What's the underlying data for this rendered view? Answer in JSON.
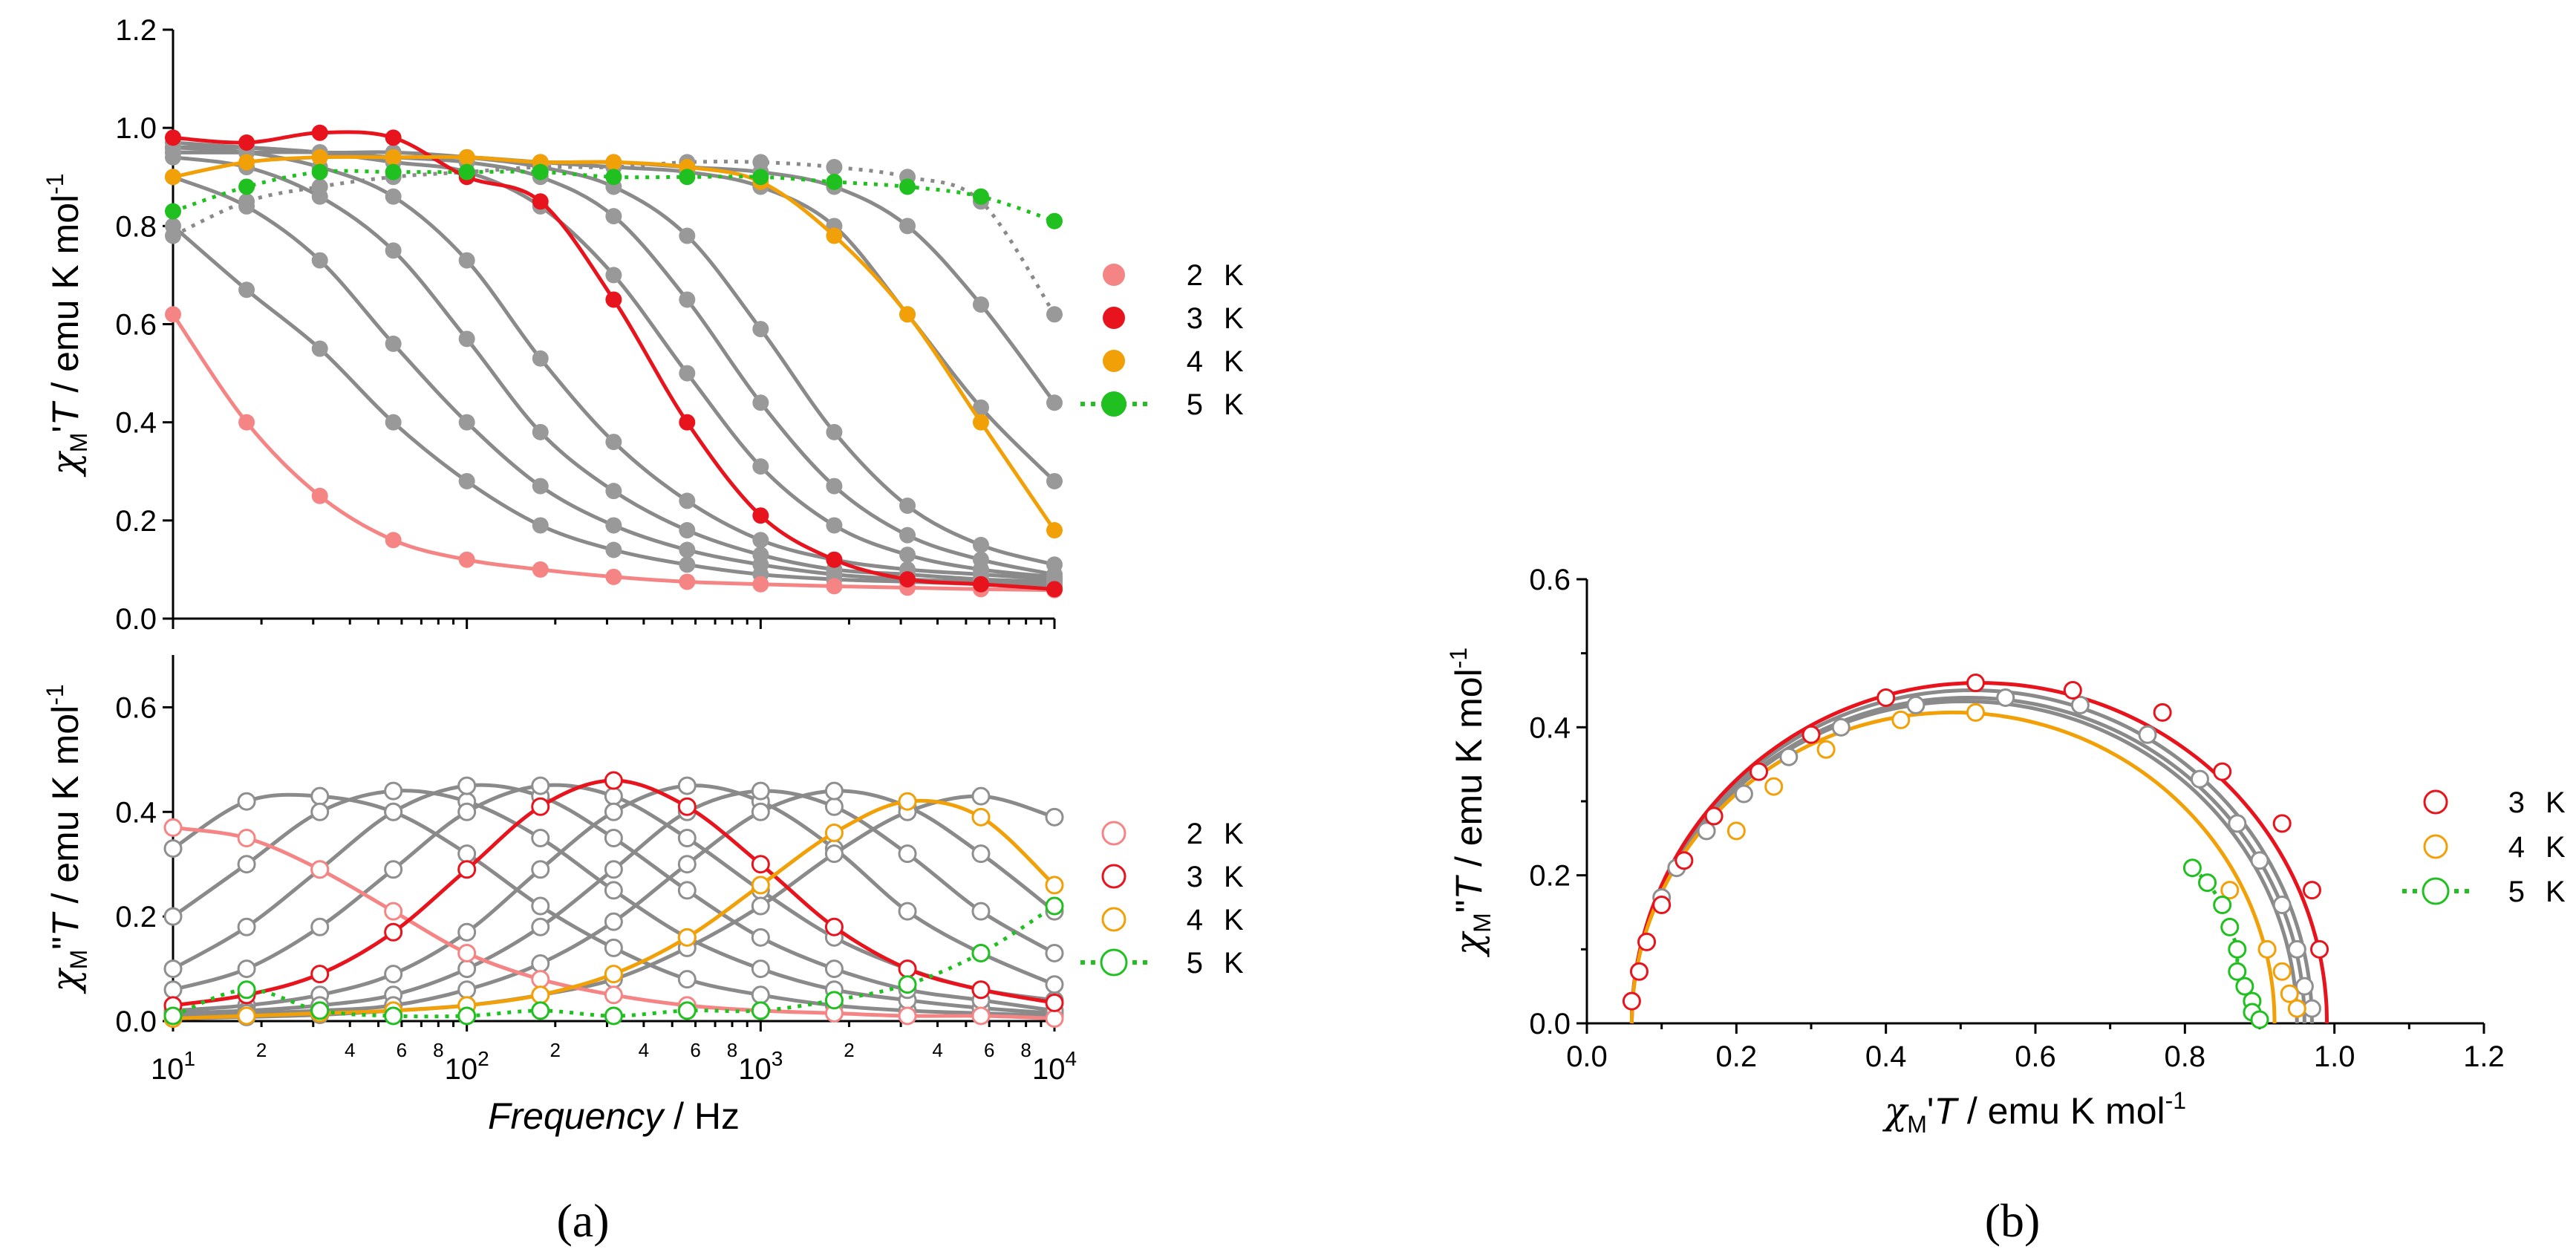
{
  "colors": {
    "2 K": "#f58585",
    "3 K": "#e8141d",
    "4 K": "#f2a007",
    "5 K": "#20c020",
    "gray": "#8a8a8a",
    "gray_marker": "#999999",
    "open_gray_edge": "#8f8f8f",
    "open_fill": "#ffffff"
  },
  "panels": {
    "a": {
      "label": "(a)"
    },
    "b": {
      "label": "(b)"
    }
  },
  "chart_data": [
    {
      "id": "a-top",
      "type": "line",
      "xscale": "log",
      "xlim": [
        10,
        10000
      ],
      "ylim": [
        0,
        1.2
      ],
      "yticks": [
        0.0,
        0.2,
        0.4,
        0.6,
        0.8,
        1.0,
        1.2
      ],
      "ytick_labels": [
        "0.0",
        "0.2",
        "0.4",
        "0.6",
        "0.8",
        "1.0",
        "1.2"
      ],
      "ylabel_parts": [
        "χ",
        "M",
        "'",
        "T",
        " / emu K mol",
        "-1"
      ],
      "marker": "filled",
      "legend": [
        {
          "name": "2 K",
          "label": "2",
          "unit": "K",
          "style": "marker"
        },
        {
          "name": "3 K",
          "label": "3",
          "unit": "K",
          "style": "marker"
        },
        {
          "name": "4 K",
          "label": "4",
          "unit": "K",
          "style": "marker"
        },
        {
          "name": "5 K",
          "label": "5",
          "unit": "K",
          "style": "dotted-line-marker"
        }
      ],
      "x": [
        10,
        17.8,
        31.6,
        56.2,
        100,
        178,
        316,
        562,
        1000,
        1780,
        3160,
        5620,
        10000
      ],
      "series": [
        {
          "name": "2 K",
          "color_key": "2 K",
          "line": "solid",
          "values": [
            0.62,
            0.4,
            0.25,
            0.16,
            0.12,
            0.1,
            0.085,
            0.075,
            0.07,
            0.066,
            0.063,
            0.06,
            0.058
          ]
        },
        {
          "name": "",
          "color_key": "gray",
          "line": "solid",
          "values": [
            0.8,
            0.67,
            0.55,
            0.4,
            0.28,
            0.19,
            0.14,
            0.11,
            0.09,
            0.08,
            0.075,
            0.07,
            0.065
          ]
        },
        {
          "name": "",
          "color_key": "gray",
          "line": "solid",
          "values": [
            0.9,
            0.84,
            0.73,
            0.56,
            0.4,
            0.27,
            0.19,
            0.14,
            0.11,
            0.09,
            0.08,
            0.075,
            0.07
          ]
        },
        {
          "name": "",
          "color_key": "gray",
          "line": "solid",
          "values": [
            0.94,
            0.92,
            0.86,
            0.75,
            0.57,
            0.38,
            0.26,
            0.18,
            0.13,
            0.1,
            0.09,
            0.08,
            0.075
          ]
        },
        {
          "name": "",
          "color_key": "gray",
          "line": "solid",
          "values": [
            0.96,
            0.95,
            0.92,
            0.86,
            0.73,
            0.53,
            0.36,
            0.24,
            0.16,
            0.12,
            0.1,
            0.09,
            0.08
          ]
        },
        {
          "name": "3 K",
          "color_key": "3 K",
          "line": "solid",
          "values": [
            0.98,
            0.97,
            0.99,
            0.98,
            0.9,
            0.85,
            0.65,
            0.4,
            0.21,
            0.12,
            0.08,
            0.07,
            0.06
          ]
        },
        {
          "name": "",
          "color_key": "gray",
          "line": "solid",
          "values": [
            0.97,
            0.96,
            0.95,
            0.93,
            0.91,
            0.84,
            0.7,
            0.5,
            0.31,
            0.19,
            0.13,
            0.1,
            0.085
          ]
        },
        {
          "name": "",
          "color_key": "gray",
          "line": "solid",
          "values": [
            0.96,
            0.96,
            0.95,
            0.94,
            0.93,
            0.9,
            0.82,
            0.65,
            0.44,
            0.27,
            0.17,
            0.12,
            0.09
          ]
        },
        {
          "name": "",
          "color_key": "gray",
          "line": "solid",
          "values": [
            0.96,
            0.96,
            0.95,
            0.95,
            0.94,
            0.92,
            0.88,
            0.78,
            0.59,
            0.38,
            0.23,
            0.15,
            0.11
          ]
        },
        {
          "name": "4 K",
          "color_key": "4 K",
          "line": "solid",
          "values": [
            0.9,
            0.93,
            0.94,
            0.94,
            0.94,
            0.93,
            0.93,
            0.92,
            0.89,
            0.78,
            0.62,
            0.4,
            0.18
          ]
        },
        {
          "name": "",
          "color_key": "gray",
          "line": "solid",
          "values": [
            0.95,
            0.95,
            0.95,
            0.94,
            0.94,
            0.93,
            0.92,
            0.91,
            0.88,
            0.8,
            0.62,
            0.43,
            0.28
          ]
        },
        {
          "name": "",
          "color_key": "gray",
          "line": "solid",
          "values": [
            0.95,
            0.95,
            0.95,
            0.94,
            0.94,
            0.93,
            0.93,
            0.92,
            0.91,
            0.88,
            0.8,
            0.64,
            0.44
          ]
        },
        {
          "name": "",
          "color_key": "gray",
          "line": "dotted",
          "values": [
            0.78,
            0.85,
            0.88,
            0.9,
            0.91,
            0.92,
            0.92,
            0.93,
            0.93,
            0.92,
            0.9,
            0.85,
            0.62
          ]
        },
        {
          "name": "5 K",
          "color_key": "5 K",
          "line": "dotted",
          "values": [
            0.83,
            0.88,
            0.91,
            0.91,
            0.91,
            0.91,
            0.9,
            0.9,
            0.9,
            0.89,
            0.88,
            0.86,
            0.81
          ]
        }
      ]
    },
    {
      "id": "a-bottom",
      "type": "line",
      "xscale": "log",
      "xlim": [
        10,
        10000
      ],
      "ylim": [
        0,
        0.7
      ],
      "yticks": [
        0.0,
        0.2,
        0.4,
        0.6
      ],
      "ytick_labels": [
        "0.0",
        "0.2",
        "0.4",
        "0.6"
      ],
      "xticks": [
        10,
        100,
        1000,
        10000
      ],
      "xtick_base": "10",
      "xtick_exponents": [
        "1",
        "2",
        "3",
        "4"
      ],
      "minor_tick_labels": [
        "2",
        "4",
        "6",
        "8"
      ],
      "xlabel_parts": [
        "Frequency",
        " / Hz"
      ],
      "ylabel_parts": [
        "χ",
        "M",
        "\"",
        "T",
        " / emu K mol",
        "-1"
      ],
      "marker": "open",
      "legend": [
        {
          "name": "2 K",
          "label": "2",
          "unit": "K",
          "style": "marker"
        },
        {
          "name": "3 K",
          "label": "3",
          "unit": "K",
          "style": "marker"
        },
        {
          "name": "4 K",
          "label": "4",
          "unit": "K",
          "style": "marker"
        },
        {
          "name": "5 K",
          "label": "5",
          "unit": "K",
          "style": "dotted-line-marker"
        }
      ],
      "x": [
        10,
        17.8,
        31.6,
        56.2,
        100,
        178,
        316,
        562,
        1000,
        1780,
        3160,
        5620,
        10000
      ],
      "series": [
        {
          "name": "2 K",
          "color_key": "2 K",
          "line": "solid",
          "values": [
            0.37,
            0.35,
            0.29,
            0.21,
            0.13,
            0.08,
            0.05,
            0.03,
            0.02,
            0.015,
            0.01,
            0.01,
            0.005
          ]
        },
        {
          "name": "",
          "color_key": "gray",
          "line": "solid",
          "values": [
            0.33,
            0.42,
            0.43,
            0.4,
            0.32,
            0.22,
            0.14,
            0.08,
            0.05,
            0.03,
            0.02,
            0.015,
            0.01
          ]
        },
        {
          "name": "",
          "color_key": "gray",
          "line": "solid",
          "values": [
            0.2,
            0.3,
            0.4,
            0.44,
            0.42,
            0.35,
            0.25,
            0.16,
            0.1,
            0.06,
            0.04,
            0.025,
            0.015
          ]
        },
        {
          "name": "",
          "color_key": "gray",
          "line": "solid",
          "values": [
            0.1,
            0.18,
            0.29,
            0.4,
            0.45,
            0.43,
            0.35,
            0.25,
            0.16,
            0.1,
            0.06,
            0.04,
            0.02
          ]
        },
        {
          "name": "",
          "color_key": "gray",
          "line": "solid",
          "values": [
            0.06,
            0.1,
            0.18,
            0.29,
            0.4,
            0.45,
            0.43,
            0.35,
            0.25,
            0.16,
            0.1,
            0.06,
            0.04
          ]
        },
        {
          "name": "3 K",
          "color_key": "3 K",
          "line": "solid",
          "values": [
            0.03,
            0.05,
            0.09,
            0.17,
            0.29,
            0.41,
            0.46,
            0.41,
            0.3,
            0.18,
            0.1,
            0.06,
            0.035
          ]
        },
        {
          "name": "",
          "color_key": "gray",
          "line": "solid",
          "values": [
            0.02,
            0.03,
            0.05,
            0.09,
            0.17,
            0.29,
            0.4,
            0.45,
            0.42,
            0.33,
            0.21,
            0.13,
            0.07
          ]
        },
        {
          "name": "",
          "color_key": "gray",
          "line": "solid",
          "values": [
            0.015,
            0.02,
            0.03,
            0.05,
            0.1,
            0.18,
            0.29,
            0.4,
            0.44,
            0.41,
            0.32,
            0.21,
            0.13
          ]
        },
        {
          "name": "",
          "color_key": "gray",
          "line": "solid",
          "values": [
            0.01,
            0.015,
            0.02,
            0.03,
            0.06,
            0.11,
            0.19,
            0.3,
            0.4,
            0.44,
            0.41,
            0.32,
            0.21
          ]
        },
        {
          "name": "4 K",
          "color_key": "4 K",
          "line": "solid",
          "values": [
            0.005,
            0.01,
            0.015,
            0.02,
            0.03,
            0.05,
            0.09,
            0.16,
            0.26,
            0.36,
            0.42,
            0.39,
            0.26
          ]
        },
        {
          "name": "",
          "color_key": "gray",
          "line": "solid",
          "values": [
            0.005,
            0.008,
            0.012,
            0.02,
            0.03,
            0.05,
            0.08,
            0.14,
            0.22,
            0.32,
            0.4,
            0.43,
            0.39
          ]
        },
        {
          "name": "5 K",
          "color_key": "5 K",
          "line": "dotted",
          "values": [
            0.01,
            0.06,
            0.02,
            0.01,
            0.01,
            0.02,
            0.01,
            0.02,
            0.02,
            0.04,
            0.07,
            0.13,
            0.22
          ]
        }
      ]
    },
    {
      "id": "b",
      "type": "scatter",
      "xlim": [
        0,
        1.2
      ],
      "ylim": [
        0,
        0.6
      ],
      "xticks": [
        0.0,
        0.2,
        0.4,
        0.6,
        0.8,
        1.0,
        1.2
      ],
      "xtick_labels": [
        "0.0",
        "0.2",
        "0.4",
        "0.6",
        "0.8",
        "1.0",
        "1.2"
      ],
      "yticks": [
        0.0,
        0.2,
        0.4,
        0.6
      ],
      "ytick_labels": [
        "0.0",
        "0.2",
        "0.4",
        "0.6"
      ],
      "xlabel_parts": [
        "χ",
        "M",
        "'",
        "T",
        " / emu K mol",
        "-1"
      ],
      "ylabel_parts": [
        "χ",
        "M",
        "\"",
        "T",
        " / emu K mol",
        "-1"
      ],
      "marker": "open",
      "legend": [
        {
          "name": "3 K",
          "label": "3",
          "unit": "K",
          "style": "marker"
        },
        {
          "name": "4 K",
          "label": "4",
          "unit": "K",
          "style": "marker"
        },
        {
          "name": "5 K",
          "label": "5",
          "unit": "K",
          "style": "dotted-line-marker"
        }
      ],
      "arcs": [
        {
          "name": "3 K",
          "color_key": "3 K",
          "x0": 0.06,
          "x1": 0.99,
          "h": 0.46
        },
        {
          "name": "",
          "color_key": "gray",
          "x0": 0.06,
          "x1": 0.97,
          "h": 0.45
        },
        {
          "name": "",
          "color_key": "gray",
          "x0": 0.06,
          "x1": 0.96,
          "h": 0.44
        },
        {
          "name": "",
          "color_key": "gray",
          "x0": 0.06,
          "x1": 0.95,
          "h": 0.435
        },
        {
          "name": "4 K",
          "color_key": "4 K",
          "x0": 0.06,
          "x1": 0.92,
          "h": 0.42
        }
      ],
      "series": [
        {
          "name": "3 K",
          "color_key": "3 K",
          "points": [
            [
              0.06,
              0.03
            ],
            [
              0.07,
              0.07
            ],
            [
              0.08,
              0.11
            ],
            [
              0.1,
              0.16
            ],
            [
              0.13,
              0.22
            ],
            [
              0.17,
              0.28
            ],
            [
              0.23,
              0.34
            ],
            [
              0.3,
              0.39
            ],
            [
              0.4,
              0.44
            ],
            [
              0.52,
              0.46
            ],
            [
              0.65,
              0.45
            ],
            [
              0.77,
              0.42
            ],
            [
              0.85,
              0.34
            ],
            [
              0.93,
              0.27
            ],
            [
              0.97,
              0.18
            ],
            [
              0.98,
              0.1
            ]
          ]
        },
        {
          "name": "4 K",
          "color_key": "4 K",
          "points": [
            [
              0.2,
              0.26
            ],
            [
              0.25,
              0.32
            ],
            [
              0.32,
              0.37
            ],
            [
              0.42,
              0.41
            ],
            [
              0.52,
              0.42
            ],
            [
              0.86,
              0.18
            ],
            [
              0.91,
              0.1
            ],
            [
              0.93,
              0.07
            ],
            [
              0.94,
              0.04
            ],
            [
              0.95,
              0.02
            ]
          ]
        },
        {
          "name": "",
          "color_key": "gray",
          "points": [
            [
              0.1,
              0.17
            ],
            [
              0.12,
              0.21
            ],
            [
              0.16,
              0.26
            ],
            [
              0.21,
              0.31
            ],
            [
              0.27,
              0.36
            ],
            [
              0.34,
              0.4
            ],
            [
              0.44,
              0.43
            ],
            [
              0.56,
              0.44
            ],
            [
              0.66,
              0.43
            ],
            [
              0.75,
              0.39
            ],
            [
              0.82,
              0.33
            ],
            [
              0.87,
              0.27
            ],
            [
              0.9,
              0.22
            ],
            [
              0.93,
              0.16
            ],
            [
              0.95,
              0.1
            ],
            [
              0.96,
              0.05
            ],
            [
              0.97,
              0.02
            ]
          ]
        },
        {
          "name": "5 K",
          "color_key": "5 K",
          "points": [
            [
              0.81,
              0.21
            ],
            [
              0.83,
              0.19
            ],
            [
              0.85,
              0.16
            ],
            [
              0.86,
              0.13
            ],
            [
              0.87,
              0.1
            ],
            [
              0.87,
              0.07
            ],
            [
              0.88,
              0.05
            ],
            [
              0.89,
              0.03
            ],
            [
              0.89,
              0.015
            ],
            [
              0.9,
              0.005
            ]
          ]
        }
      ]
    }
  ]
}
